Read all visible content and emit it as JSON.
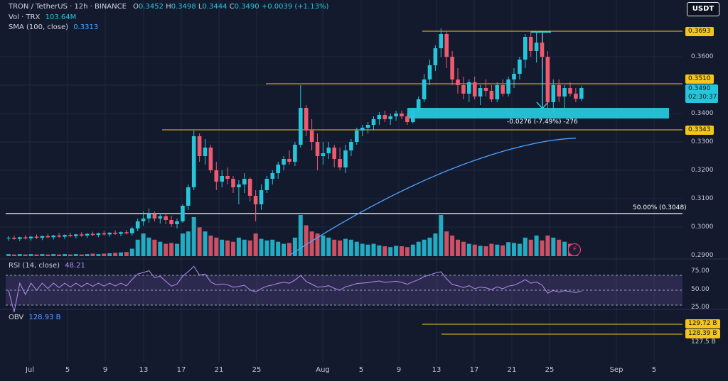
{
  "header": {
    "symbol": "TRON / TetherUS · 12h · BINANCE",
    "open_label": "O",
    "open": "0.3452",
    "high_label": "H",
    "high": "0.3498",
    "low_label": "L",
    "low": "0.3444",
    "close_label": "C",
    "close": "0.3490",
    "change": "+0.0039 (+1.13%)"
  },
  "indicators": {
    "vol_label": "Vol · TRX",
    "vol_value": "103.64M",
    "sma_label": "SMA (100, close)",
    "sma_value": "0.3313",
    "rsi_label": "RSI (14, close)",
    "rsi_value": "48.21",
    "obv_label": "OBV",
    "obv_value": "128.93 B"
  },
  "currency_button": "USDT",
  "price_axis": {
    "ticks": [
      "0.3600",
      "0.3400",
      "0.3300",
      "0.3200",
      "0.3100",
      "0.3000",
      "0.2900"
    ],
    "levels": [
      "0.3693",
      "0.3510",
      "0.3343"
    ],
    "last_price": "0.3490",
    "countdown": "02:30:37"
  },
  "rsi_axis": {
    "ticks": [
      "75.00",
      "50.00",
      "25.00"
    ]
  },
  "obv_axis": {
    "levels": [
      "129.72 B",
      "128.39 B"
    ],
    "ticks": [
      "127.5 B"
    ]
  },
  "annotations": {
    "measure": "-0.0276 (-7.49%) -276",
    "fib": "50.00% (0.3048)"
  },
  "time_axis": [
    "Jul",
    "5",
    "9",
    "13",
    "17",
    "21",
    "25",
    "Aug",
    "5",
    "9",
    "13",
    "17",
    "21",
    "25",
    "Sep",
    "5"
  ],
  "colors": {
    "up": "#26c6da",
    "down": "#ef5a6f",
    "level": "#f5c518",
    "sma": "#4fa3ff",
    "rsi": "#b48cf0",
    "obv": "#4fa3ff"
  },
  "chart_data": {
    "type": "candlestick",
    "interval": "12h",
    "ohlc": [
      [
        0.296,
        0.2968,
        0.2952,
        0.2962
      ],
      [
        0.2962,
        0.297,
        0.2955,
        0.2958
      ],
      [
        0.2958,
        0.2966,
        0.295,
        0.2964
      ],
      [
        0.2964,
        0.2972,
        0.2956,
        0.296
      ],
      [
        0.296,
        0.2968,
        0.2952,
        0.2966
      ],
      [
        0.2966,
        0.2974,
        0.2958,
        0.2962
      ],
      [
        0.2962,
        0.297,
        0.2954,
        0.2968
      ],
      [
        0.2968,
        0.2976,
        0.296,
        0.2964
      ],
      [
        0.2964,
        0.2972,
        0.2956,
        0.297
      ],
      [
        0.297,
        0.2978,
        0.2962,
        0.2966
      ],
      [
        0.2966,
        0.2974,
        0.2958,
        0.2972
      ],
      [
        0.2972,
        0.298,
        0.2964,
        0.2968
      ],
      [
        0.2968,
        0.2976,
        0.296,
        0.2974
      ],
      [
        0.2974,
        0.2982,
        0.2966,
        0.297
      ],
      [
        0.297,
        0.2978,
        0.2962,
        0.2976
      ],
      [
        0.2976,
        0.2984,
        0.2968,
        0.2972
      ],
      [
        0.2972,
        0.298,
        0.2964,
        0.2978
      ],
      [
        0.2978,
        0.2986,
        0.297,
        0.2974
      ],
      [
        0.2974,
        0.2982,
        0.2966,
        0.298
      ],
      [
        0.298,
        0.2988,
        0.2972,
        0.2976
      ],
      [
        0.2976,
        0.2984,
        0.2968,
        0.2982
      ],
      [
        0.2982,
        0.299,
        0.2974,
        0.2978
      ],
      [
        0.2978,
        0.3,
        0.297,
        0.2995
      ],
      [
        0.2995,
        0.303,
        0.2985,
        0.302
      ],
      [
        0.302,
        0.3055,
        0.3005,
        0.303
      ],
      [
        0.303,
        0.3065,
        0.3015,
        0.3045
      ],
      [
        0.3045,
        0.3055,
        0.302,
        0.303
      ],
      [
        0.303,
        0.3048,
        0.3012,
        0.3038
      ],
      [
        0.3038,
        0.305,
        0.301,
        0.3025
      ],
      [
        0.3025,
        0.304,
        0.3,
        0.301
      ],
      [
        0.301,
        0.303,
        0.2995,
        0.302
      ],
      [
        0.302,
        0.308,
        0.3015,
        0.3075
      ],
      [
        0.3075,
        0.315,
        0.306,
        0.314
      ],
      [
        0.314,
        0.334,
        0.313,
        0.332
      ],
      [
        0.332,
        0.333,
        0.323,
        0.325
      ],
      [
        0.325,
        0.331,
        0.322,
        0.328
      ],
      [
        0.328,
        0.329,
        0.319,
        0.32
      ],
      [
        0.32,
        0.323,
        0.313,
        0.316
      ],
      [
        0.316,
        0.32,
        0.314,
        0.318
      ],
      [
        0.318,
        0.321,
        0.315,
        0.317
      ],
      [
        0.317,
        0.318,
        0.312,
        0.314
      ],
      [
        0.314,
        0.3165,
        0.308,
        0.315
      ],
      [
        0.315,
        0.319,
        0.312,
        0.317
      ],
      [
        0.317,
        0.3175,
        0.309,
        0.311
      ],
      [
        0.311,
        0.313,
        0.302,
        0.308
      ],
      [
        0.308,
        0.315,
        0.306,
        0.313
      ],
      [
        0.313,
        0.318,
        0.312,
        0.317
      ],
      [
        0.317,
        0.32,
        0.315,
        0.319
      ],
      [
        0.319,
        0.323,
        0.317,
        0.322
      ],
      [
        0.322,
        0.325,
        0.32,
        0.324
      ],
      [
        0.324,
        0.327,
        0.322,
        0.323
      ],
      [
        0.323,
        0.33,
        0.3215,
        0.329
      ],
      [
        0.329,
        0.35,
        0.328,
        0.342
      ],
      [
        0.342,
        0.343,
        0.332,
        0.334
      ],
      [
        0.334,
        0.338,
        0.327,
        0.33
      ],
      [
        0.33,
        0.333,
        0.32,
        0.325
      ],
      [
        0.325,
        0.33,
        0.322,
        0.326
      ],
      [
        0.326,
        0.33,
        0.324,
        0.328
      ],
      [
        0.328,
        0.329,
        0.321,
        0.324
      ],
      [
        0.324,
        0.328,
        0.32,
        0.321
      ],
      [
        0.321,
        0.329,
        0.319,
        0.327
      ],
      [
        0.327,
        0.331,
        0.325,
        0.33
      ],
      [
        0.33,
        0.335,
        0.329,
        0.334
      ],
      [
        0.334,
        0.336,
        0.332,
        0.335
      ],
      [
        0.335,
        0.337,
        0.333,
        0.336
      ],
      [
        0.336,
        0.339,
        0.334,
        0.338
      ],
      [
        0.338,
        0.3405,
        0.336,
        0.3395
      ],
      [
        0.3395,
        0.341,
        0.337,
        0.338
      ],
      [
        0.338,
        0.34,
        0.336,
        0.339
      ],
      [
        0.339,
        0.341,
        0.3375,
        0.34
      ],
      [
        0.34,
        0.341,
        0.338,
        0.339
      ],
      [
        0.339,
        0.34,
        0.336,
        0.337
      ],
      [
        0.337,
        0.342,
        0.3365,
        0.341
      ],
      [
        0.341,
        0.346,
        0.34,
        0.345
      ],
      [
        0.345,
        0.354,
        0.344,
        0.352
      ],
      [
        0.352,
        0.359,
        0.35,
        0.357
      ],
      [
        0.357,
        0.364,
        0.355,
        0.363
      ],
      [
        0.363,
        0.37,
        0.36,
        0.368
      ],
      [
        0.368,
        0.369,
        0.356,
        0.36
      ],
      [
        0.36,
        0.362,
        0.35,
        0.352
      ],
      [
        0.352,
        0.356,
        0.347,
        0.35
      ],
      [
        0.35,
        0.353,
        0.345,
        0.347
      ],
      [
        0.347,
        0.352,
        0.344,
        0.351
      ],
      [
        0.351,
        0.353,
        0.345,
        0.346
      ],
      [
        0.346,
        0.35,
        0.343,
        0.349
      ],
      [
        0.349,
        0.352,
        0.346,
        0.348
      ],
      [
        0.348,
        0.35,
        0.344,
        0.345
      ],
      [
        0.345,
        0.351,
        0.344,
        0.35
      ],
      [
        0.35,
        0.352,
        0.346,
        0.347
      ],
      [
        0.347,
        0.353,
        0.346,
        0.352
      ],
      [
        0.352,
        0.356,
        0.349,
        0.354
      ],
      [
        0.354,
        0.36,
        0.352,
        0.359
      ],
      [
        0.359,
        0.368,
        0.356,
        0.367
      ],
      [
        0.367,
        0.369,
        0.36,
        0.362
      ],
      [
        0.362,
        0.369,
        0.358,
        0.365
      ],
      [
        0.365,
        0.368,
        0.356,
        0.36
      ],
      [
        0.36,
        0.362,
        0.342,
        0.344
      ],
      [
        0.344,
        0.352,
        0.34,
        0.35
      ],
      [
        0.35,
        0.352,
        0.344,
        0.346
      ],
      [
        0.346,
        0.35,
        0.342,
        0.349
      ],
      [
        0.349,
        0.351,
        0.346,
        0.347
      ],
      [
        0.347,
        0.349,
        0.344,
        0.3452
      ],
      [
        0.3452,
        0.3498,
        0.3444,
        0.349
      ]
    ],
    "volume_scale": "relative",
    "volume": [
      5,
      4,
      5,
      4,
      5,
      4,
      5,
      4,
      5,
      4,
      5,
      4,
      5,
      4,
      5,
      6,
      5,
      6,
      7,
      8,
      9,
      10,
      18,
      40,
      55,
      45,
      40,
      35,
      30,
      32,
      30,
      55,
      60,
      95,
      70,
      60,
      50,
      45,
      40,
      38,
      35,
      45,
      40,
      38,
      55,
      42,
      38,
      40,
      35,
      30,
      32,
      45,
      100,
      75,
      60,
      55,
      50,
      45,
      40,
      38,
      42,
      40,
      35,
      30,
      28,
      30,
      26,
      24,
      22,
      25,
      24,
      22,
      28,
      35,
      40,
      45,
      55,
      100,
      60,
      50,
      40,
      35,
      30,
      28,
      25,
      24,
      30,
      28,
      26,
      34,
      32,
      30,
      45,
      40,
      50,
      38,
      50,
      45,
      40,
      35,
      30,
      28
    ],
    "sma": {
      "name": "SMA (100, close)",
      "start": [
        0,
        0.29
      ],
      "end": [
        101,
        0.3313
      ]
    },
    "levels": [
      0.3693,
      0.351,
      0.3343,
      0.3048
    ],
    "rsi_last": 48.21,
    "obv_last": 128.93
  }
}
